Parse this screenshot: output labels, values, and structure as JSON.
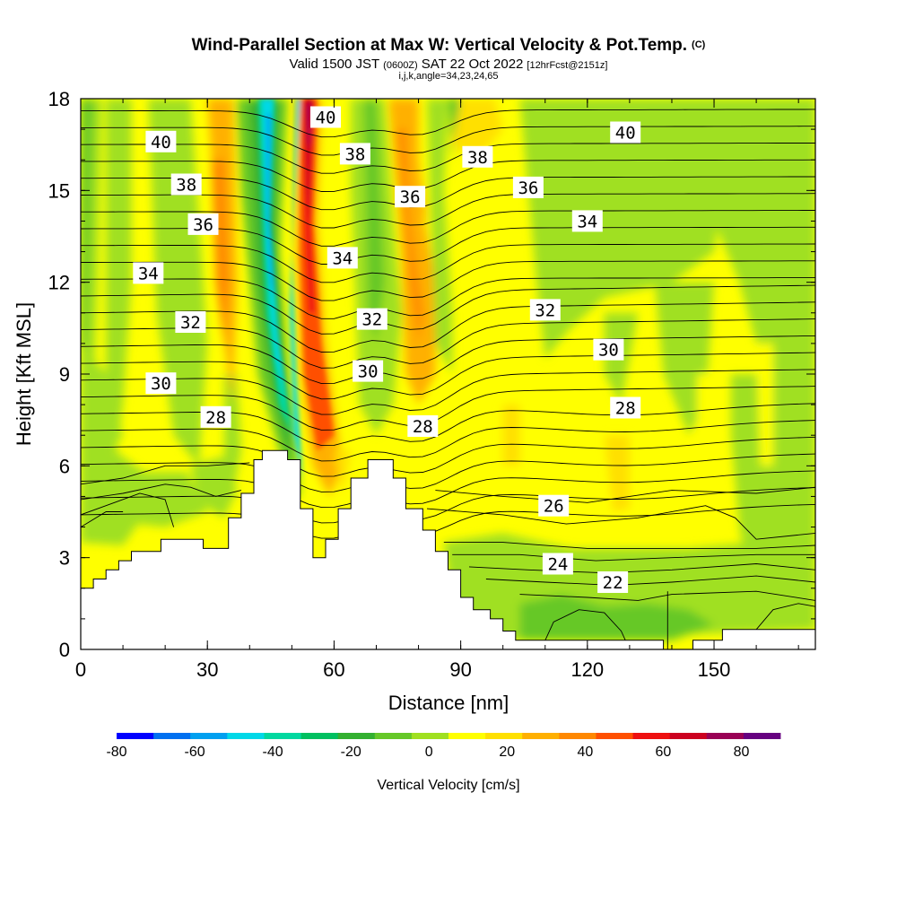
{
  "chart_data": {
    "type": "heatmap",
    "title": "Wind-Parallel Section at Max W: Vertical Velocity & Pot.Temp.",
    "title_mark": "(C)",
    "subtitle": {
      "valid": "Valid 1500 JST",
      "utc": "(0600Z)",
      "date": "SAT 22 Oct 2022",
      "fcst": "[12hrFcst@2151z]"
    },
    "subtitle2": "i,j,k,angle=34,23,24,65",
    "xlabel": "Distance [nm]",
    "ylabel": "Height [Kft MSL]",
    "xlim": [
      0,
      174
    ],
    "ylim": [
      0,
      18
    ],
    "xticks": [
      "0",
      "30",
      "60",
      "90",
      "120",
      "150"
    ],
    "yticks": [
      "0",
      "3",
      "6",
      "9",
      "12",
      "15",
      "18"
    ],
    "colorbar": {
      "title": "Vertical Velocity [cm/s]",
      "range": [
        -80,
        90
      ],
      "tick_labels": [
        "-80",
        "-60",
        "-40",
        "-20",
        "0",
        "20",
        "40",
        "60",
        "80"
      ],
      "colors": [
        "#0000ff",
        "#0070f0",
        "#00a0f0",
        "#00d8e8",
        "#00d8a0",
        "#00c060",
        "#33b030",
        "#66c828",
        "#a0e020",
        "#ffff00",
        "#ffe000",
        "#ffb000",
        "#ff8800",
        "#ff5000",
        "#ee1010",
        "#cc0020",
        "#990055",
        "#660080"
      ]
    },
    "potential_temperature_contour_labels": [
      {
        "label": "40",
        "x": 19,
        "y": 16.6
      },
      {
        "label": "38",
        "x": 25,
        "y": 15.2
      },
      {
        "label": "36",
        "x": 29,
        "y": 13.9
      },
      {
        "label": "34",
        "x": 16,
        "y": 12.3
      },
      {
        "label": "32",
        "x": 26,
        "y": 10.7
      },
      {
        "label": "30",
        "x": 19,
        "y": 8.7
      },
      {
        "label": "28",
        "x": 32,
        "y": 7.6
      },
      {
        "label": "40",
        "x": 58,
        "y": 17.4
      },
      {
        "label": "38",
        "x": 65,
        "y": 16.2
      },
      {
        "label": "36",
        "x": 78,
        "y": 14.8
      },
      {
        "label": "34",
        "x": 62,
        "y": 12.8
      },
      {
        "label": "32",
        "x": 69,
        "y": 10.8
      },
      {
        "label": "30",
        "x": 68,
        "y": 9.1
      },
      {
        "label": "28",
        "x": 81,
        "y": 7.3
      },
      {
        "label": "38",
        "x": 94,
        "y": 16.1
      },
      {
        "label": "36",
        "x": 106,
        "y": 15.1
      },
      {
        "label": "34",
        "x": 120,
        "y": 14.0
      },
      {
        "label": "32",
        "x": 110,
        "y": 11.1
      },
      {
        "label": "30",
        "x": 125,
        "y": 9.8
      },
      {
        "label": "28",
        "x": 129,
        "y": 7.9
      },
      {
        "label": "40",
        "x": 129,
        "y": 16.9
      },
      {
        "label": "26",
        "x": 112,
        "y": 4.7
      },
      {
        "label": "24",
        "x": 113,
        "y": 2.8
      },
      {
        "label": "22",
        "x": 126,
        "y": 2.2
      }
    ],
    "terrain_profile": [
      [
        0,
        2.0
      ],
      [
        3,
        2.0
      ],
      [
        3,
        2.3
      ],
      [
        6,
        2.3
      ],
      [
        6,
        2.6
      ],
      [
        9,
        2.6
      ],
      [
        9,
        2.9
      ],
      [
        12,
        2.9
      ],
      [
        12,
        3.2
      ],
      [
        19,
        3.2
      ],
      [
        19,
        3.6
      ],
      [
        29,
        3.6
      ],
      [
        29,
        3.3
      ],
      [
        35,
        3.3
      ],
      [
        35,
        4.3
      ],
      [
        38,
        4.3
      ],
      [
        38,
        5.1
      ],
      [
        41,
        5.1
      ],
      [
        41,
        6.2
      ],
      [
        43,
        6.2
      ],
      [
        43,
        6.5
      ],
      [
        49,
        6.5
      ],
      [
        49,
        6.2
      ],
      [
        52,
        6.2
      ],
      [
        52,
        4.6
      ],
      [
        55,
        4.6
      ],
      [
        55,
        3.0
      ],
      [
        58,
        3.0
      ],
      [
        58,
        3.6
      ],
      [
        61,
        3.6
      ],
      [
        61,
        4.6
      ],
      [
        64,
        4.6
      ],
      [
        64,
        5.6
      ],
      [
        68,
        5.6
      ],
      [
        68,
        6.2
      ],
      [
        74,
        6.2
      ],
      [
        74,
        5.6
      ],
      [
        77,
        5.6
      ],
      [
        77,
        4.6
      ],
      [
        81,
        4.6
      ],
      [
        81,
        3.9
      ],
      [
        84,
        3.9
      ],
      [
        84,
        3.2
      ],
      [
        87,
        3.2
      ],
      [
        87,
        2.6
      ],
      [
        90,
        2.6
      ],
      [
        90,
        1.7
      ],
      [
        93,
        1.7
      ],
      [
        93,
        1.3
      ],
      [
        97,
        1.3
      ],
      [
        97,
        1.0
      ],
      [
        100,
        1.0
      ],
      [
        100,
        0.6
      ],
      [
        103,
        0.6
      ],
      [
        103,
        0.3
      ],
      [
        138,
        0.3
      ],
      [
        138,
        0.0
      ],
      [
        145,
        0.0
      ],
      [
        145,
        0.3
      ],
      [
        152,
        0.3
      ],
      [
        152,
        0.65
      ],
      [
        174,
        0.65
      ]
    ]
  }
}
